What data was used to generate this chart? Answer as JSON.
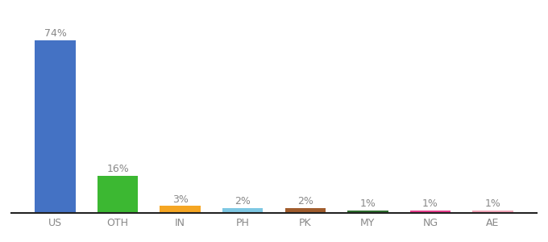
{
  "categories": [
    "US",
    "OTH",
    "IN",
    "PH",
    "PK",
    "MY",
    "NG",
    "AE"
  ],
  "values": [
    74,
    16,
    3,
    2,
    2,
    1,
    1,
    1
  ],
  "bar_colors": [
    "#4472c4",
    "#3cb832",
    "#f5a623",
    "#7ec8e3",
    "#a05c2c",
    "#2d6e2d",
    "#e83e8c",
    "#f4a7b9"
  ],
  "labels": [
    "74%",
    "16%",
    "3%",
    "2%",
    "2%",
    "1%",
    "1%",
    "1%"
  ],
  "label_fontsize": 9,
  "tick_fontsize": 9,
  "ylim": [
    0,
    84
  ],
  "background_color": "#ffffff",
  "label_color": "#888888",
  "tick_color": "#888888",
  "bottom_spine_color": "#222222"
}
